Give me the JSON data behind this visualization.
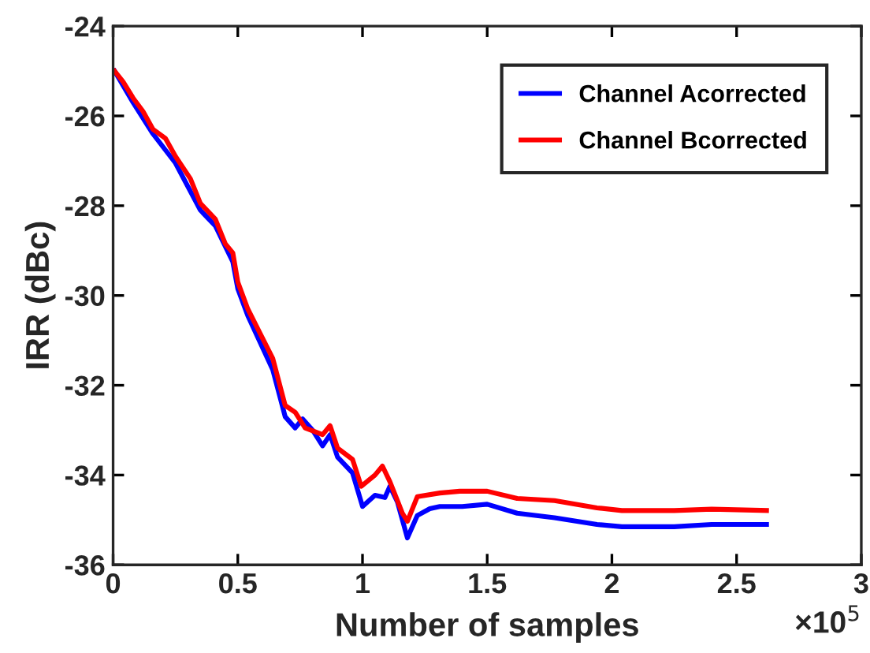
{
  "chart_data": {
    "type": "line",
    "xlabel": "Number of samples",
    "ylabel": "IRR (dBc)",
    "annotations": [
      "×10$^{5}$"
    ],
    "xlim": [
      0,
      3
    ],
    "xticks": [
      0,
      0.5,
      1,
      1.5,
      2,
      2.5,
      3
    ],
    "ylim": [
      -36,
      -24
    ],
    "yticks": [
      -36,
      -34,
      -32,
      -30,
      -28,
      -26,
      -24
    ],
    "grid": false,
    "legend": "top right",
    "marker": "none",
    "line_style": "solid",
    "series": [
      {
        "name": "Channel Acorrected",
        "color": "#0000ff",
        "x": [
          0.006,
          0.08,
          0.16,
          0.25,
          0.35,
          0.41,
          0.48,
          0.5,
          0.54,
          0.59,
          0.64,
          0.69,
          0.73,
          0.76,
          0.8,
          0.84,
          0.87,
          0.9,
          0.96,
          1.0,
          1.05,
          1.09,
          1.11,
          1.14,
          1.18,
          1.22,
          1.27,
          1.31,
          1.4,
          1.5,
          1.62,
          1.77,
          1.94,
          2.04,
          2.25,
          2.4,
          2.62
        ],
        "values": [
          -25.0,
          -25.7,
          -26.4,
          -27.05,
          -28.1,
          -28.45,
          -29.25,
          -29.85,
          -30.45,
          -31.05,
          -31.65,
          -32.7,
          -32.95,
          -32.75,
          -33.0,
          -33.35,
          -33.1,
          -33.6,
          -33.95,
          -34.7,
          -34.45,
          -34.5,
          -34.25,
          -34.6,
          -35.4,
          -34.9,
          -34.75,
          -34.7,
          -34.7,
          -34.65,
          -34.85,
          -34.95,
          -35.1,
          -35.15,
          -35.15,
          -35.1,
          -35.1
        ]
      },
      {
        "name": "Channel Bcorrected",
        "color": "#ff0000",
        "x": [
          0.006,
          0.04,
          0.08,
          0.12,
          0.16,
          0.21,
          0.25,
          0.31,
          0.35,
          0.41,
          0.45,
          0.48,
          0.5,
          0.54,
          0.59,
          0.64,
          0.69,
          0.73,
          0.77,
          0.84,
          0.87,
          0.9,
          0.96,
          0.995,
          1.05,
          1.08,
          1.11,
          1.16,
          1.18,
          1.22,
          1.31,
          1.39,
          1.5,
          1.62,
          1.77,
          1.94,
          2.04,
          2.25,
          2.4,
          2.62
        ],
        "values": [
          -25.0,
          -25.24,
          -25.6,
          -25.9,
          -26.3,
          -26.5,
          -26.9,
          -27.4,
          -27.95,
          -28.3,
          -28.85,
          -29.05,
          -29.7,
          -30.3,
          -30.85,
          -31.4,
          -32.45,
          -32.6,
          -32.95,
          -33.1,
          -32.9,
          -33.4,
          -33.65,
          -34.25,
          -34.0,
          -33.8,
          -34.15,
          -34.85,
          -35.03,
          -34.48,
          -34.4,
          -34.36,
          -34.36,
          -34.52,
          -34.57,
          -34.73,
          -34.79,
          -34.79,
          -34.76,
          -34.79
        ]
      }
    ]
  }
}
